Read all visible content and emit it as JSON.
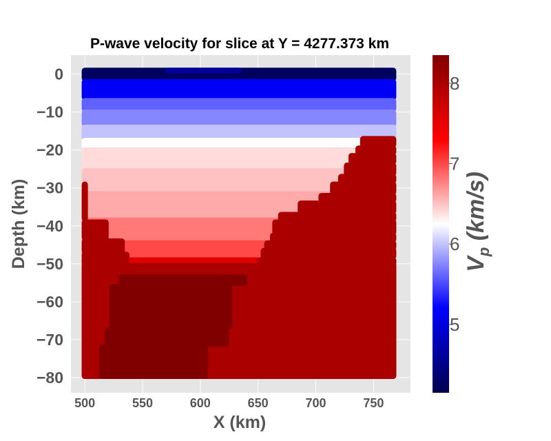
{
  "chart_data": {
    "type": "scatter",
    "title": "P-wave velocity for slice at Y = 4277.373 km",
    "xlabel": "X (km)",
    "ylabel": "Depth (km)",
    "xlim": [
      488,
      782
    ],
    "ylim": [
      -84,
      5
    ],
    "xticks": [
      500,
      550,
      600,
      650,
      700,
      750
    ],
    "yticks": [
      0,
      -10,
      -20,
      -30,
      -40,
      -50,
      -60,
      -70,
      -80
    ],
    "grid": true,
    "colorbar": {
      "label_main": "V",
      "label_sub": "p",
      "label_rest": " (km/s)",
      "range": [
        4.15,
        8.35
      ],
      "ticks": [
        5,
        6,
        7,
        8
      ],
      "colormap": "seismic"
    },
    "layers": [
      {
        "top": 1.5,
        "bottom": -1.5,
        "vp": 4.25
      },
      {
        "top": -1.5,
        "bottom": -6.5,
        "vp": 5.15
      },
      {
        "top": -6.5,
        "bottom": -9.5,
        "vp": 5.6
      },
      {
        "top": -9.5,
        "bottom": -13.5,
        "vp": 5.75
      },
      {
        "top": -13.5,
        "bottom": -17.0,
        "vp": 6.0
      },
      {
        "top": -17.0,
        "bottom": -19.5,
        "vp": 6.25
      },
      {
        "top": -19.5,
        "bottom": -25.0,
        "vp": 6.4
      },
      {
        "top": -25.0,
        "bottom": -31.0,
        "vp": 6.5
      },
      {
        "top": -31.0,
        "bottom": -38.0,
        "vp": 6.6
      },
      {
        "top": -38.0,
        "bottom": -44.0,
        "vp": 6.8
      },
      {
        "top": -44.0,
        "bottom": -48.5,
        "vp": 7.0
      },
      {
        "top": -48.5,
        "bottom": -80.0,
        "vp": 7.55
      }
    ],
    "mantle": {
      "vp": 8.0,
      "left_boundary": [
        {
          "depth": -28.5,
          "x": 500
        },
        {
          "depth": -38.5,
          "x": 518
        },
        {
          "depth": -43.5,
          "x": 532
        },
        {
          "depth": -47.0,
          "x": 536
        },
        {
          "depth": -50.0,
          "x": 540
        }
      ],
      "right_boundary": [
        {
          "depth": -16.5,
          "x": 741
        },
        {
          "depth": -19.0,
          "x": 737
        },
        {
          "depth": -21.0,
          "x": 731
        },
        {
          "depth": -23.5,
          "x": 727
        },
        {
          "depth": -26.5,
          "x": 722
        },
        {
          "depth": -28.5,
          "x": 715
        },
        {
          "depth": -31.5,
          "x": 705
        },
        {
          "depth": -33.5,
          "x": 687
        },
        {
          "depth": -36.5,
          "x": 670
        },
        {
          "depth": -38.5,
          "x": 665
        },
        {
          "depth": -42.0,
          "x": 663
        },
        {
          "depth": -44.0,
          "x": 658
        },
        {
          "depth": -46.0,
          "x": 655
        },
        {
          "depth": -48.5,
          "x": 652
        },
        {
          "depth": -50.0,
          "x": 650
        }
      ]
    },
    "deep_block": {
      "vp": 8.35,
      "rows": [
        {
          "top": -53,
          "bottom": -55.5,
          "x0": 532,
          "x1": 638
        },
        {
          "top": -55.5,
          "bottom": -67,
          "x0": 524,
          "x1": 625
        },
        {
          "top": -67,
          "bottom": -71.5,
          "x0": 520,
          "x1": 622
        },
        {
          "top": -71.5,
          "bottom": -80,
          "x0": 515,
          "x1": 604
        }
      ]
    },
    "surface_patch": {
      "vp": 4.6,
      "x0": 572,
      "x1": 633,
      "top": 1.5,
      "bottom": 0.5
    },
    "x_extent": [
      500,
      767
    ]
  }
}
